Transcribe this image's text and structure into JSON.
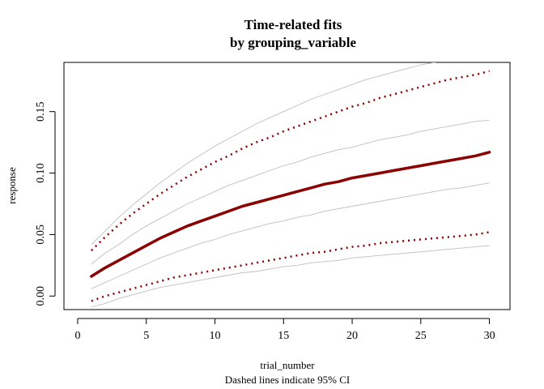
{
  "chart_data": {
    "type": "line",
    "title": "Time-related fits",
    "subtitle": "by grouping_variable",
    "xlabel": "trial_number",
    "ylabel": "response",
    "caption": "Dashed lines indicate 95% CI",
    "xlim": [
      -1,
      31.5
    ],
    "ylim": [
      -0.011,
      0.19
    ],
    "x_ticks": [
      0,
      5,
      10,
      15,
      20,
      25,
      30
    ],
    "y_ticks": [
      0.0,
      0.05,
      0.1,
      0.15
    ],
    "x_tick_labels": [
      "0",
      "5",
      "10",
      "15",
      "20",
      "25",
      "30"
    ],
    "y_tick_labels": [
      "0.00",
      "0.05",
      "0.10",
      "0.15"
    ],
    "grid": false,
    "series": [
      {
        "style": "solid-thick",
        "color": "#8b0000",
        "x": [
          1,
          2,
          3,
          4,
          5,
          6,
          7,
          8,
          9,
          10,
          11,
          12,
          13,
          14,
          15,
          16,
          17,
          18,
          19,
          20,
          21,
          22,
          23,
          24,
          25,
          26,
          27,
          28,
          29,
          30
        ],
        "values": [
          0.016,
          0.023,
          0.029,
          0.035,
          0.041,
          0.047,
          0.052,
          0.057,
          0.061,
          0.065,
          0.069,
          0.073,
          0.076,
          0.079,
          0.082,
          0.085,
          0.088,
          0.091,
          0.093,
          0.096,
          0.098,
          0.1,
          0.102,
          0.104,
          0.106,
          0.108,
          0.11,
          0.112,
          0.114,
          0.117
        ]
      },
      {
        "style": "dotted",
        "color": "#8b0000",
        "x": [
          1,
          2,
          3,
          4,
          5,
          6,
          7,
          8,
          9,
          10,
          11,
          12,
          13,
          14,
          15,
          16,
          17,
          18,
          19,
          20,
          21,
          22,
          23,
          24,
          25,
          26,
          27,
          28,
          29,
          30
        ],
        "values": [
          0.037,
          0.048,
          0.058,
          0.067,
          0.075,
          0.083,
          0.09,
          0.097,
          0.103,
          0.109,
          0.114,
          0.12,
          0.125,
          0.129,
          0.134,
          0.138,
          0.142,
          0.146,
          0.15,
          0.154,
          0.157,
          0.161,
          0.164,
          0.167,
          0.17,
          0.173,
          0.176,
          0.178,
          0.18,
          0.183
        ]
      },
      {
        "style": "dotted",
        "color": "#8b0000",
        "x": [
          1,
          2,
          3,
          4,
          5,
          6,
          7,
          8,
          9,
          10,
          11,
          12,
          13,
          14,
          15,
          16,
          17,
          18,
          19,
          20,
          21,
          22,
          23,
          24,
          25,
          26,
          27,
          28,
          29,
          30
        ],
        "values": [
          -0.004,
          0.0,
          0.003,
          0.006,
          0.009,
          0.012,
          0.015,
          0.017,
          0.019,
          0.021,
          0.023,
          0.025,
          0.027,
          0.029,
          0.031,
          0.033,
          0.035,
          0.036,
          0.038,
          0.04,
          0.041,
          0.043,
          0.044,
          0.045,
          0.046,
          0.047,
          0.048,
          0.049,
          0.05,
          0.052
        ]
      },
      {
        "style": "thin",
        "color": "#bfbfbf",
        "x": [
          1,
          2,
          3,
          4,
          5,
          6,
          7,
          8,
          9,
          10,
          11,
          12,
          13,
          14,
          15,
          16,
          17,
          18,
          19,
          20,
          21,
          22,
          23,
          24,
          25,
          26,
          27,
          28,
          29,
          30
        ],
        "values": [
          0.042,
          0.053,
          0.064,
          0.074,
          0.083,
          0.092,
          0.1,
          0.108,
          0.115,
          0.122,
          0.128,
          0.134,
          0.14,
          0.145,
          0.15,
          0.155,
          0.16,
          0.164,
          0.168,
          0.172,
          0.176,
          0.179,
          0.182,
          0.185,
          0.188,
          0.19,
          0.192,
          0.195,
          0.198,
          0.201
        ]
      },
      {
        "style": "thin",
        "color": "#bfbfbf",
        "x": [
          1,
          2,
          3,
          4,
          5,
          6,
          7,
          8,
          9,
          10,
          11,
          12,
          13,
          14,
          15,
          16,
          17,
          18,
          19,
          20,
          21,
          22,
          23,
          24,
          25,
          26,
          27,
          28,
          29,
          30
        ],
        "values": [
          0.026,
          0.035,
          0.042,
          0.05,
          0.057,
          0.063,
          0.069,
          0.075,
          0.08,
          0.085,
          0.09,
          0.094,
          0.098,
          0.102,
          0.106,
          0.109,
          0.113,
          0.116,
          0.119,
          0.121,
          0.124,
          0.127,
          0.129,
          0.131,
          0.134,
          0.136,
          0.138,
          0.14,
          0.142,
          0.143
        ]
      },
      {
        "style": "thin",
        "color": "#bfbfbf",
        "x": [
          1,
          2,
          3,
          4,
          5,
          6,
          7,
          8,
          9,
          10,
          11,
          12,
          13,
          14,
          15,
          16,
          17,
          18,
          19,
          20,
          21,
          22,
          23,
          24,
          25,
          26,
          27,
          28,
          29,
          30
        ],
        "values": [
          0.006,
          0.011,
          0.016,
          0.021,
          0.026,
          0.031,
          0.035,
          0.039,
          0.043,
          0.046,
          0.05,
          0.053,
          0.056,
          0.059,
          0.061,
          0.064,
          0.066,
          0.069,
          0.071,
          0.073,
          0.075,
          0.077,
          0.079,
          0.081,
          0.083,
          0.085,
          0.087,
          0.088,
          0.09,
          0.092
        ]
      },
      {
        "style": "thin",
        "color": "#bfbfbf",
        "x": [
          1,
          2,
          3,
          4,
          5,
          6,
          7,
          8,
          9,
          10,
          11,
          12,
          13,
          14,
          15,
          16,
          17,
          18,
          19,
          20,
          21,
          22,
          23,
          24,
          25,
          26,
          27,
          28,
          29,
          30
        ],
        "values": [
          -0.009,
          -0.006,
          -0.002,
          0.001,
          0.004,
          0.007,
          0.009,
          0.011,
          0.013,
          0.015,
          0.017,
          0.019,
          0.02,
          0.022,
          0.024,
          0.025,
          0.027,
          0.028,
          0.029,
          0.031,
          0.032,
          0.033,
          0.034,
          0.035,
          0.036,
          0.037,
          0.038,
          0.039,
          0.04,
          0.041
        ]
      }
    ]
  }
}
